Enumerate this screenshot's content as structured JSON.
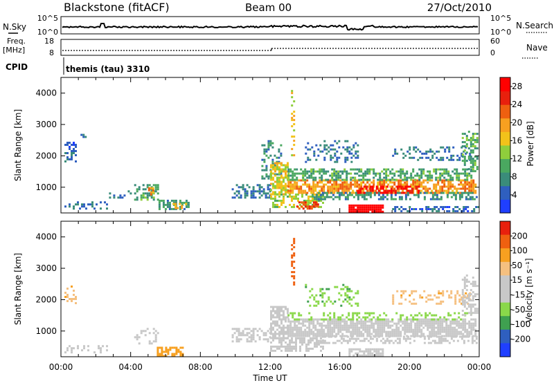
{
  "header": {
    "station": "Blackstone (fitACF)",
    "beam": "Beam 00",
    "date": "27/Oct/2010"
  },
  "strip_labels": {
    "nsky": "N.Sky",
    "nsky_ticks": [
      "10^5",
      "10^0"
    ],
    "nsearch": "N.Search",
    "nsearch_ticks": [
      "10^5",
      "10^0"
    ],
    "freq_line1": "Freq.",
    "freq_line2": "[MHz]",
    "freq_ticks": [
      "18",
      "8"
    ],
    "nave": "Nave",
    "nave_ticks": [
      "60",
      "0"
    ],
    "cpid": "CPID",
    "cpid_text": "themis (tau) 3310"
  },
  "colors": {
    "power_scale": [
      "#1f3fff",
      "#2f5fbf",
      "#3a8c7a",
      "#4aa860",
      "#8fce3c",
      "#f2c21a",
      "#f7a020",
      "#ef6010",
      "#e8200d",
      "#ff0000"
    ],
    "velocity_scale": [
      "#e8200d",
      "#ef6010",
      "#f7a020",
      "#f5c080",
      "#c8c8c8",
      "#c8c8c8",
      "#8ad84a",
      "#3fa050",
      "#2f5fbf",
      "#1f3fff"
    ],
    "ground_scatter": "#c8c8c8"
  },
  "chart_data": [
    {
      "type": "heatmap",
      "title": "Power",
      "xlabel": "",
      "ylabel": "Slant Range [km]",
      "x_ticks": [
        "00:00",
        "04:00",
        "08:00",
        "12:00",
        "16:00",
        "20:00",
        "00:00"
      ],
      "y_ticks": [
        "1000",
        "2000",
        "3000",
        "4000"
      ],
      "xlim": [
        0,
        24
      ],
      "ylim": [
        180,
        4500
      ],
      "colorbar": {
        "label": "Power [dB]",
        "ticks": [
          "4",
          "8",
          "12",
          "16",
          "20",
          "24",
          "28"
        ],
        "range": [
          0,
          30
        ]
      },
      "regions": [
        {
          "t0": 0.2,
          "t1": 0.9,
          "r0": 1800,
          "r1": 2450,
          "v": 5,
          "d": 0.45
        },
        {
          "t0": 1.0,
          "t1": 1.4,
          "r0": 2600,
          "r1": 2900,
          "v": 5,
          "d": 0.25
        },
        {
          "t0": 0.2,
          "t1": 2.6,
          "r0": 300,
          "r1": 550,
          "v": 6,
          "d": 0.35
        },
        {
          "t0": 2.4,
          "t1": 4.0,
          "r0": 700,
          "r1": 900,
          "v": 6,
          "d": 0.25
        },
        {
          "t0": 4.2,
          "t1": 5.6,
          "r0": 600,
          "r1": 1100,
          "v": 10,
          "d": 0.55
        },
        {
          "t0": 5.0,
          "t1": 5.3,
          "r0": 800,
          "r1": 1000,
          "v": 20,
          "d": 0.6
        },
        {
          "t0": 5.6,
          "t1": 7.3,
          "r0": 300,
          "r1": 600,
          "v": 8,
          "d": 0.5
        },
        {
          "t0": 6.4,
          "t1": 7.2,
          "r0": 350,
          "r1": 500,
          "v": 18,
          "d": 0.5
        },
        {
          "t0": 9.8,
          "t1": 12.0,
          "r0": 700,
          "r1": 1100,
          "v": 6,
          "d": 0.5
        },
        {
          "t0": 11.5,
          "t1": 12.6,
          "r0": 1300,
          "r1": 2500,
          "v": 8,
          "d": 0.35
        },
        {
          "t0": 12.0,
          "t1": 13.0,
          "r0": 800,
          "r1": 1800,
          "v": 16,
          "d": 0.7
        },
        {
          "t0": 12.0,
          "t1": 15.0,
          "r0": 400,
          "r1": 800,
          "v": 14,
          "d": 0.55
        },
        {
          "t0": 13.5,
          "t1": 14.8,
          "r0": 350,
          "r1": 550,
          "v": 24,
          "d": 0.7
        },
        {
          "t0": 13.2,
          "t1": 13.4,
          "r0": 2000,
          "r1": 4100,
          "v": 16,
          "d": 0.3
        },
        {
          "t0": 13.0,
          "t1": 23.8,
          "r0": 850,
          "r1": 1250,
          "v": 20,
          "d": 0.75
        },
        {
          "t0": 13.0,
          "t1": 23.5,
          "r0": 1250,
          "r1": 1600,
          "v": 10,
          "d": 0.55
        },
        {
          "t0": 14.5,
          "t1": 23.8,
          "r0": 600,
          "r1": 850,
          "v": 8,
          "d": 0.45
        },
        {
          "t0": 17.0,
          "t1": 20.5,
          "r0": 850,
          "r1": 1050,
          "v": 28,
          "d": 0.45
        },
        {
          "t0": 16.5,
          "t1": 18.5,
          "r0": 250,
          "r1": 450,
          "v": 30,
          "d": 0.9
        },
        {
          "t0": 14.0,
          "t1": 17.0,
          "r0": 1800,
          "r1": 2500,
          "v": 6,
          "d": 0.3
        },
        {
          "t0": 19.0,
          "t1": 23.5,
          "r0": 1900,
          "r1": 2300,
          "v": 6,
          "d": 0.3
        },
        {
          "t0": 23.0,
          "t1": 23.9,
          "r0": 1500,
          "r1": 2800,
          "v": 10,
          "d": 0.45
        },
        {
          "t0": 19.0,
          "t1": 23.9,
          "r0": 250,
          "r1": 400,
          "v": 5,
          "d": 0.4
        }
      ]
    },
    {
      "type": "heatmap",
      "title": "Velocity",
      "xlabel": "Time UT",
      "ylabel": "Slant Range [km]",
      "x_ticks": [
        "00:00",
        "04:00",
        "08:00",
        "12:00",
        "16:00",
        "20:00",
        "00:00"
      ],
      "y_ticks": [
        "1000",
        "2000",
        "3000",
        "4000"
      ],
      "xlim": [
        0,
        24
      ],
      "ylim": [
        180,
        4500
      ],
      "colorbar": {
        "label": "Velocity [m s⁻¹]",
        "ticks": [
          "200",
          "100",
          "50",
          "15",
          "-15",
          "-50",
          "-100",
          "-200"
        ],
        "range": [
          -250,
          250
        ]
      },
      "regions": [
        {
          "t0": 0.2,
          "t1": 0.9,
          "r0": 1800,
          "r1": 2450,
          "v": -40,
          "d": 0.35
        },
        {
          "t0": 0.2,
          "t1": 2.6,
          "r0": 300,
          "r1": 550,
          "v": 0,
          "d": 0.3
        },
        {
          "t0": 4.2,
          "t1": 5.6,
          "r0": 600,
          "r1": 1100,
          "v": 0,
          "d": 0.3
        },
        {
          "t0": 5.5,
          "t1": 7.0,
          "r0": 180,
          "r1": 500,
          "v": -80,
          "d": 0.7
        },
        {
          "t0": 9.8,
          "t1": 12.0,
          "r0": 700,
          "r1": 1100,
          "v": 0,
          "d": 0.45
        },
        {
          "t0": 12.0,
          "t1": 13.0,
          "r0": 800,
          "r1": 1800,
          "v": 0,
          "d": 0.7
        },
        {
          "t0": 12.0,
          "t1": 15.0,
          "r0": 400,
          "r1": 800,
          "v": 0,
          "d": 0.55
        },
        {
          "t0": 13.2,
          "t1": 13.4,
          "r0": 2200,
          "r1": 4100,
          "v": -150,
          "d": 0.35
        },
        {
          "t0": 13.0,
          "t1": 23.8,
          "r0": 850,
          "r1": 1400,
          "v": 0,
          "d": 0.8
        },
        {
          "t0": 13.0,
          "t1": 23.5,
          "r0": 1400,
          "r1": 1600,
          "v": 30,
          "d": 0.3
        },
        {
          "t0": 14.5,
          "t1": 23.8,
          "r0": 600,
          "r1": 850,
          "v": 0,
          "d": 0.45
        },
        {
          "t0": 16.5,
          "t1": 18.5,
          "r0": 250,
          "r1": 450,
          "v": 0,
          "d": 0.8
        },
        {
          "t0": 14.0,
          "t1": 17.0,
          "r0": 1800,
          "r1": 2500,
          "v": 40,
          "d": 0.25
        },
        {
          "t0": 19.0,
          "t1": 23.5,
          "r0": 1900,
          "r1": 2300,
          "v": -40,
          "d": 0.3
        },
        {
          "t0": 23.0,
          "t1": 23.9,
          "r0": 1500,
          "r1": 2800,
          "v": 0,
          "d": 0.45
        }
      ]
    }
  ]
}
